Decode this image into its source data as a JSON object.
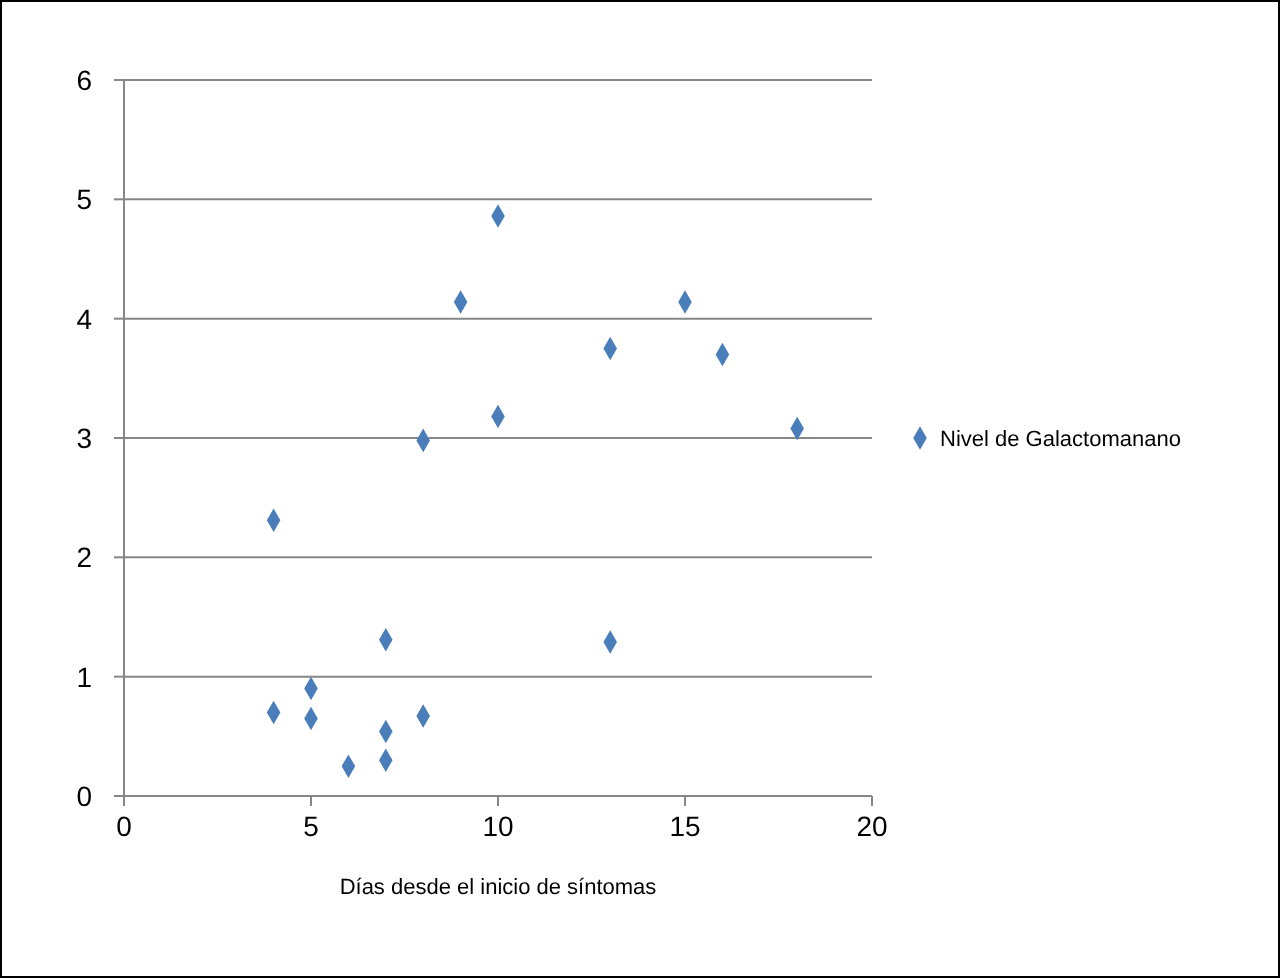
{
  "chart_data": {
    "type": "scatter",
    "xlabel": "Días desde el inicio de síntomas",
    "x": [
      4,
      4,
      5,
      5,
      6,
      7,
      7,
      7,
      8,
      8,
      9,
      10,
      10,
      13,
      13,
      15,
      16,
      18
    ],
    "series": [
      {
        "name": "Nivel de Galactomanano",
        "color": "#4a7ebb",
        "values": [
          2.31,
          0.7,
          0.9,
          0.65,
          0.25,
          1.31,
          0.54,
          0.3,
          0.67,
          2.98,
          4.14,
          4.86,
          3.18,
          3.75,
          1.29,
          4.14,
          3.7,
          3.08
        ]
      }
    ],
    "xlim": [
      0,
      20
    ],
    "xticks": [
      0,
      5,
      10,
      15,
      20
    ],
    "ylim": [
      0,
      6
    ],
    "yticks": [
      0,
      1,
      2,
      3,
      4,
      5,
      6
    ],
    "grid": "y",
    "legend": "right",
    "marker": "diamond"
  }
}
